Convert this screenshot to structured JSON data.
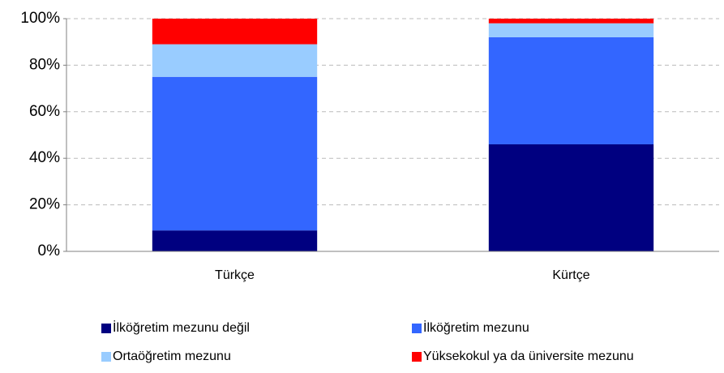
{
  "chart_data": {
    "type": "bar",
    "stacked": true,
    "categories": [
      "Türkçe",
      "Kürtçe"
    ],
    "series": [
      {
        "name": "İlköğretim mezunu değil",
        "color": "#000080",
        "values": [
          9,
          46
        ]
      },
      {
        "name": "İlköğretim mezunu",
        "color": "#3366ff",
        "values": [
          66,
          46
        ]
      },
      {
        "name": "Ortaöğretim mezunu",
        "color": "#99ccff",
        "values": [
          14,
          6
        ]
      },
      {
        "name": "Yüksekokul ya da üniversite mezunu",
        "color": "#ff0000",
        "values": [
          11,
          2
        ]
      }
    ],
    "ylim": [
      0,
      100
    ],
    "yticks": [
      {
        "value": 0,
        "label": "0%"
      },
      {
        "value": 20,
        "label": "20%"
      },
      {
        "value": 40,
        "label": "40%"
      },
      {
        "value": 60,
        "label": "60%"
      },
      {
        "value": 80,
        "label": "80%"
      },
      {
        "value": 100,
        "label": "100%"
      }
    ],
    "grid": true,
    "legend": "bottom"
  }
}
